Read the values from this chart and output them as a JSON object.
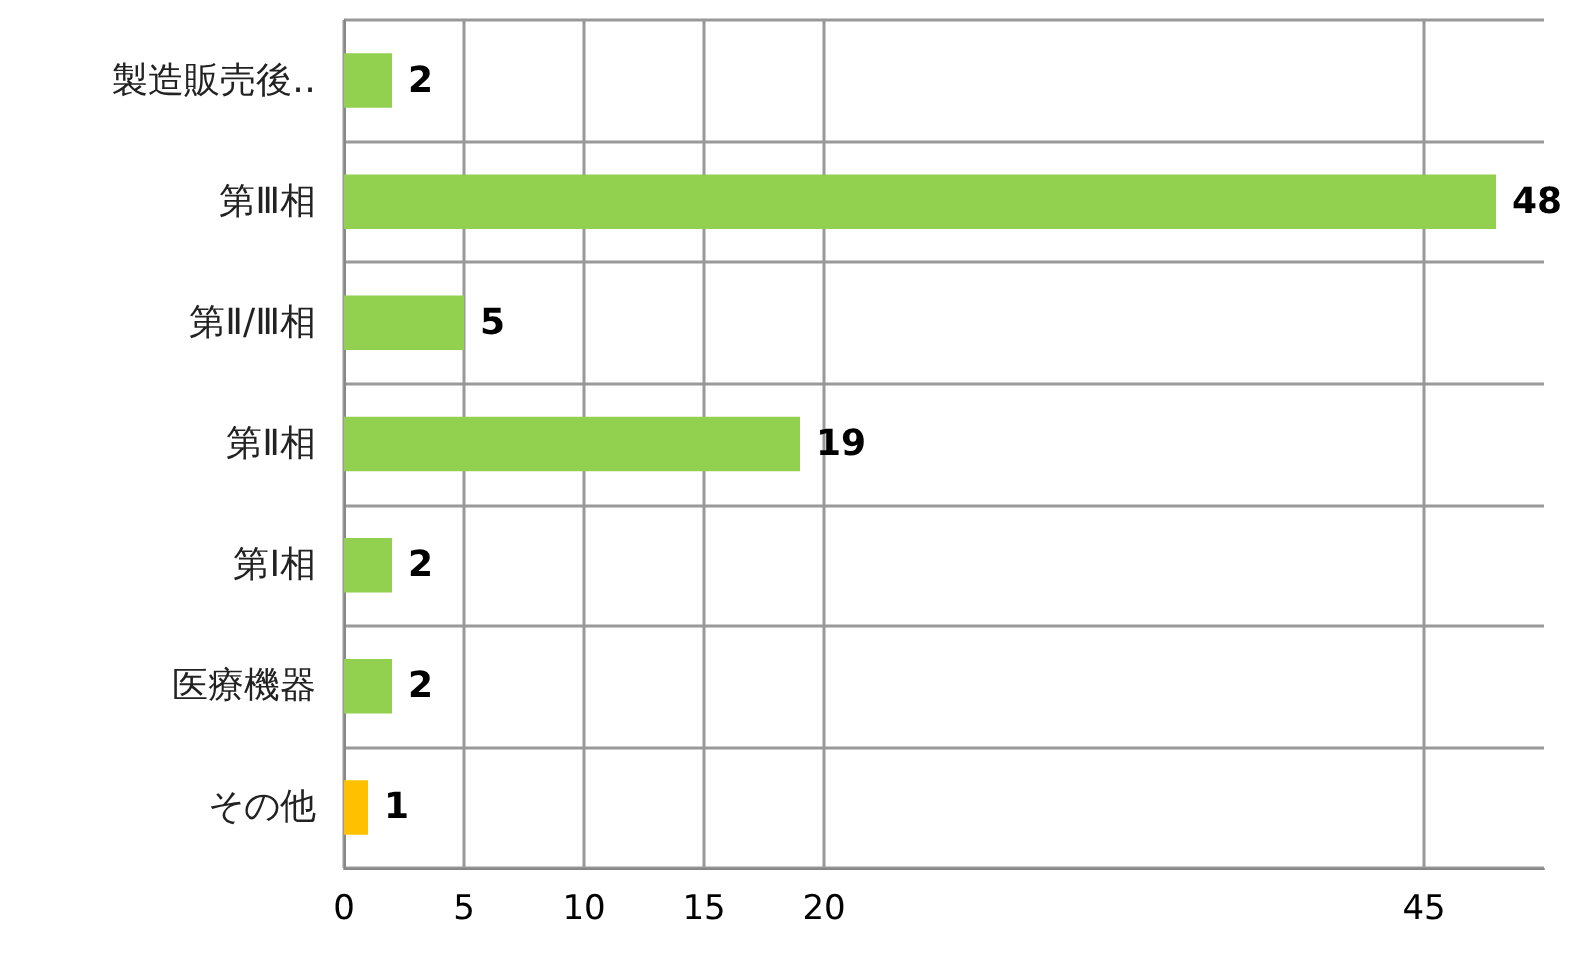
{
  "chart_data": {
    "type": "bar",
    "orientation": "horizontal",
    "categories": [
      "製造販売後‥",
      "第Ⅲ相",
      "第Ⅱ/Ⅲ相",
      "第Ⅱ相",
      "第Ⅰ相",
      "医療機器",
      "その他"
    ],
    "values": [
      2,
      48,
      5,
      19,
      2,
      2,
      1
    ],
    "colors": [
      "#92d050",
      "#92d050",
      "#92d050",
      "#92d050",
      "#92d050",
      "#92d050",
      "#ffc000"
    ],
    "xlim": [
      0,
      50
    ],
    "xticks": [
      0,
      5,
      10,
      15,
      20,
      45
    ],
    "grid": true,
    "data_labels": true
  }
}
